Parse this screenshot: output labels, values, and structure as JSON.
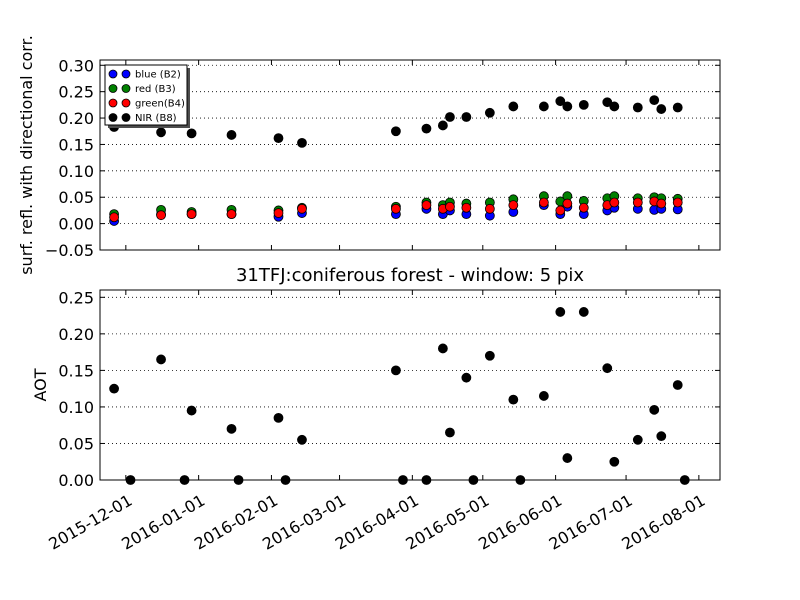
{
  "chart_data": [
    {
      "type": "scatter",
      "title": "",
      "xlabel": "",
      "ylabel": "surf. refl. with directional corr.",
      "x_axis": "date",
      "xlim": [
        "2015-11-20",
        "2016-08-10"
      ],
      "ylim": [
        -0.05,
        0.31
      ],
      "yticks": [
        -0.05,
        0.0,
        0.05,
        0.1,
        0.15,
        0.2,
        0.25,
        0.3
      ],
      "ytick_labels": [
        "−0.05",
        "0.00",
        "0.05",
        "0.10",
        "0.15",
        "0.20",
        "0.25",
        "0.30"
      ],
      "grid": "horizontal dotted",
      "legend_position": "top-left",
      "series": [
        {
          "name": "blue (B2)",
          "color": "#0000ff",
          "x": [
            "2015-11-26",
            "2015-12-16",
            "2015-12-29",
            "2016-01-15",
            "2016-02-04",
            "2016-02-14",
            "2016-03-25",
            "2016-04-07",
            "2016-04-14",
            "2016-04-17",
            "2016-04-24",
            "2016-05-04",
            "2016-05-14",
            "2016-05-27",
            "2016-06-03",
            "2016-06-06",
            "2016-06-13",
            "2016-06-23",
            "2016-06-26",
            "2016-07-06",
            "2016-07-13",
            "2016-07-16",
            "2016-07-23"
          ],
          "y": [
            0.005,
            0.018,
            0.018,
            0.018,
            0.013,
            0.02,
            0.018,
            0.028,
            0.018,
            0.025,
            0.018,
            0.015,
            0.022,
            0.035,
            0.018,
            0.032,
            0.018,
            0.025,
            0.03,
            0.028,
            0.026,
            0.028,
            0.027
          ]
        },
        {
          "name": "red  (B3)",
          "color": "#008000",
          "x": [
            "2015-11-26",
            "2015-12-16",
            "2015-12-29",
            "2016-01-15",
            "2016-02-04",
            "2016-02-14",
            "2016-03-25",
            "2016-04-07",
            "2016-04-14",
            "2016-04-17",
            "2016-04-24",
            "2016-05-04",
            "2016-05-14",
            "2016-05-27",
            "2016-06-03",
            "2016-06-06",
            "2016-06-13",
            "2016-06-23",
            "2016-06-26",
            "2016-07-06",
            "2016-07-13",
            "2016-07-16",
            "2016-07-23"
          ],
          "y": [
            0.018,
            0.026,
            0.022,
            0.026,
            0.025,
            0.03,
            0.032,
            0.04,
            0.035,
            0.04,
            0.038,
            0.04,
            0.046,
            0.052,
            0.042,
            0.052,
            0.043,
            0.048,
            0.052,
            0.048,
            0.05,
            0.048,
            0.047
          ]
        },
        {
          "name": "green(B4)",
          "color": "#ff0000",
          "x": [
            "2015-11-26",
            "2015-12-16",
            "2015-12-29",
            "2016-01-15",
            "2016-02-04",
            "2016-02-14",
            "2016-03-25",
            "2016-04-07",
            "2016-04-14",
            "2016-04-17",
            "2016-04-24",
            "2016-05-04",
            "2016-05-14",
            "2016-05-27",
            "2016-06-03",
            "2016-06-06",
            "2016-06-13",
            "2016-06-23",
            "2016-06-26",
            "2016-07-06",
            "2016-07-13",
            "2016-07-16",
            "2016-07-23"
          ],
          "y": [
            0.012,
            0.016,
            0.018,
            0.018,
            0.02,
            0.028,
            0.028,
            0.035,
            0.028,
            0.032,
            0.03,
            0.028,
            0.035,
            0.04,
            0.025,
            0.038,
            0.03,
            0.035,
            0.04,
            0.04,
            0.042,
            0.038,
            0.04
          ]
        },
        {
          "name": "NIR  (B8)",
          "color": "#000000",
          "x": [
            "2015-11-26",
            "2015-12-16",
            "2015-12-29",
            "2016-01-15",
            "2016-02-04",
            "2016-02-14",
            "2016-03-25",
            "2016-04-07",
            "2016-04-14",
            "2016-04-17",
            "2016-04-24",
            "2016-05-04",
            "2016-05-14",
            "2016-05-27",
            "2016-06-03",
            "2016-06-06",
            "2016-06-13",
            "2016-06-23",
            "2016-06-26",
            "2016-07-06",
            "2016-07-13",
            "2016-07-16",
            "2016-07-23"
          ],
          "y": [
            0.183,
            0.173,
            0.171,
            0.168,
            0.162,
            0.153,
            0.175,
            0.18,
            0.186,
            0.202,
            0.202,
            0.21,
            0.222,
            0.222,
            0.232,
            0.222,
            0.225,
            0.23,
            0.222,
            0.22,
            0.234,
            0.217,
            0.22
          ]
        }
      ]
    },
    {
      "type": "scatter",
      "title": "31TFJ:coniferous forest - window: 5 pix",
      "xlabel": "",
      "ylabel": "AOT",
      "x_axis": "date",
      "xlim": [
        "2015-11-20",
        "2016-08-10"
      ],
      "ylim": [
        0.0,
        0.26
      ],
      "yticks": [
        0.0,
        0.05,
        0.1,
        0.15,
        0.2,
        0.25
      ],
      "ytick_labels": [
        "0.00",
        "0.05",
        "0.10",
        "0.15",
        "0.20",
        "0.25"
      ],
      "xtick_labels": [
        "2015-12-01",
        "2016-01-01",
        "2016-02-01",
        "2016-03-01",
        "2016-04-01",
        "2016-05-01",
        "2016-06-01",
        "2016-07-01",
        "2016-08-01"
      ],
      "grid": "horizontal dotted",
      "series": [
        {
          "color": "#000000",
          "x": [
            "2015-11-26",
            "2015-12-03",
            "2015-12-16",
            "2015-12-26",
            "2015-12-29",
            "2016-01-15",
            "2016-01-18",
            "2016-02-04",
            "2016-02-07",
            "2016-02-14",
            "2016-03-25",
            "2016-03-28",
            "2016-04-07",
            "2016-04-14",
            "2016-04-17",
            "2016-04-24",
            "2016-04-27",
            "2016-05-04",
            "2016-05-14",
            "2016-05-17",
            "2016-05-27",
            "2016-06-03",
            "2016-06-06",
            "2016-06-13",
            "2016-06-23",
            "2016-06-26",
            "2016-07-06",
            "2016-07-13",
            "2016-07-16",
            "2016-07-23",
            "2016-07-26"
          ],
          "y": [
            0.125,
            0.0,
            0.165,
            0.0,
            0.095,
            0.07,
            0.0,
            0.085,
            0.0,
            0.055,
            0.15,
            0.0,
            0.0,
            0.18,
            0.065,
            0.14,
            0.0,
            0.17,
            0.11,
            0.0,
            0.115,
            0.23,
            0.03,
            0.23,
            0.153,
            0.025,
            0.055,
            0.096,
            0.06,
            0.13,
            0.0
          ]
        }
      ]
    }
  ]
}
